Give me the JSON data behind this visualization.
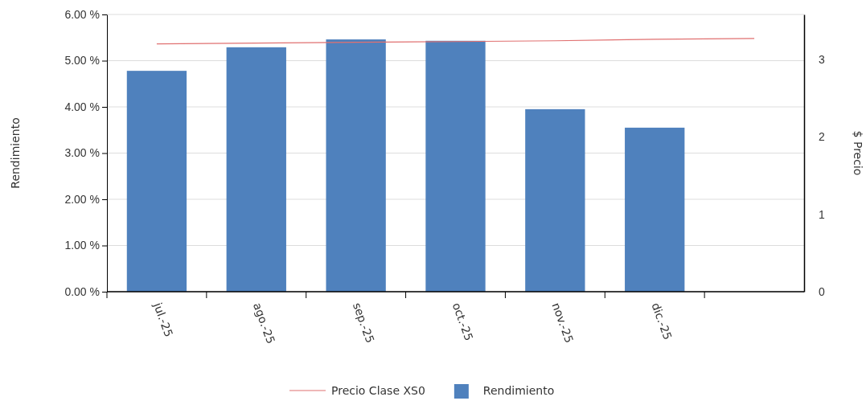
{
  "chart_data": {
    "type": "bar",
    "ylabel": "Rendimiento",
    "y2label": "$ Precio",
    "categories": [
      "jul.-25",
      "ago.-25",
      "sep.-25",
      "oct.-25",
      "nov.-25",
      "dic.-25",
      null
    ],
    "series": [
      {
        "name": "Precio Clase XS0",
        "type": "line",
        "axis": "y2",
        "color": "#e07070",
        "values": [
          3.2,
          3.21,
          3.22,
          3.23,
          3.24,
          3.26,
          3.27
        ]
      },
      {
        "name": "Rendimiento",
        "color": "#4f81bd",
        "values": [
          4.78,
          5.29,
          5.46,
          5.43,
          3.95,
          3.55,
          null
        ]
      }
    ],
    "ylim": [
      0,
      6
    ],
    "yticks": [
      {
        "value": 0,
        "label": "0.00 %"
      },
      {
        "value": 1,
        "label": "1.00 %"
      },
      {
        "value": 2,
        "label": "2.00 %"
      },
      {
        "value": 3,
        "label": "3.00 %"
      },
      {
        "value": 4,
        "label": "4.00 %"
      },
      {
        "value": 5,
        "label": "5.00 %"
      },
      {
        "value": 6,
        "label": "6.00 %"
      }
    ],
    "y2lim": [
      0,
      3.58
    ],
    "y2ticks": [
      0,
      1,
      2,
      3
    ],
    "grid": "y",
    "legend": "bottom",
    "marker": "none",
    "line_style": "solid"
  }
}
